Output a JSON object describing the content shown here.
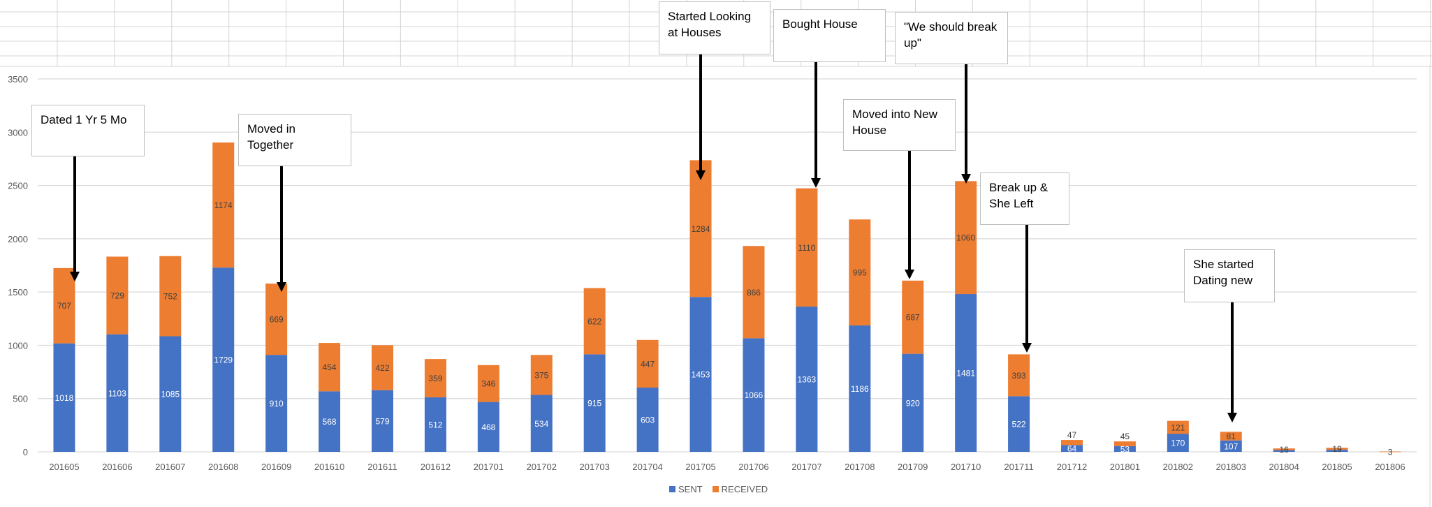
{
  "chart_data": {
    "type": "bar",
    "stacked": true,
    "categories": [
      "201605",
      "201606",
      "201607",
      "201608",
      "201609",
      "201610",
      "201611",
      "201612",
      "201701",
      "201702",
      "201703",
      "201704",
      "201705",
      "201706",
      "201707",
      "201708",
      "201709",
      "201710",
      "201711",
      "201712",
      "201801",
      "201802",
      "201803",
      "201804",
      "201805",
      "201806"
    ],
    "series": [
      {
        "name": "SENT",
        "color": "#4472C4",
        "values": [
          1018,
          1103,
          1085,
          1729,
          910,
          568,
          579,
          512,
          468,
          534,
          915,
          603,
          1453,
          1066,
          1363,
          1186,
          920,
          1481,
          522,
          64,
          53,
          170,
          107,
          16,
          19,
          0
        ]
      },
      {
        "name": "RECEIVED",
        "color": "#ED7D31",
        "values": [
          707,
          729,
          752,
          1174,
          669,
          454,
          422,
          359,
          346,
          375,
          622,
          447,
          1284,
          866,
          1110,
          995,
          687,
          1060,
          393,
          47,
          45,
          121,
          81,
          16,
          19,
          3
        ]
      }
    ],
    "data_labels": {
      "SENT": [
        "1018",
        "1103",
        "1085",
        "1729",
        "910",
        "568",
        "579",
        "512",
        "468",
        "534",
        "915",
        "603",
        "1453",
        "1066",
        "1363",
        "1186",
        "920",
        "1481",
        "522",
        "64",
        "53",
        "170",
        "107",
        "",
        "",
        ""
      ],
      "RECEIVED": [
        "707",
        "729",
        "752",
        "1174",
        "669",
        "454",
        "422",
        "359",
        "346",
        "375",
        "622",
        "447",
        "1284",
        "866",
        "1110",
        "995",
        "687",
        "1060",
        "393",
        "47",
        "45",
        "121",
        "81",
        "16",
        "19",
        "3"
      ]
    },
    "ylim": [
      0,
      3500
    ],
    "yticks": [
      "0",
      "500",
      "1000",
      "1500",
      "2000",
      "2500",
      "3000",
      "3500"
    ],
    "grid": true,
    "legend_position": "bottom",
    "annotations": [
      {
        "text": "Dated 1 Yr 5 Mo",
        "category": "201605"
      },
      {
        "text": "Moved in\nTogether",
        "category": "201609"
      },
      {
        "text": "Started Looking\nat Houses",
        "category": "201705"
      },
      {
        "text": "Bought House",
        "category": "201707"
      },
      {
        "text": "Moved into New\nHouse",
        "category": "201709"
      },
      {
        "text": "\"We should break\nup\"",
        "category": "201710"
      },
      {
        "text": "Break up &\nShe Left",
        "category": "201711"
      },
      {
        "text": "She started\nDating new",
        "category": "201803"
      }
    ]
  }
}
